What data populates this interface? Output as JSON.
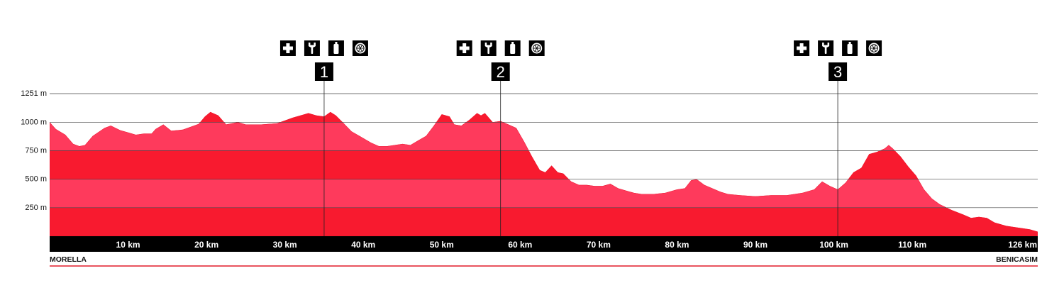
{
  "chart_data": {
    "type": "area",
    "title": "",
    "xlabel": "",
    "ylabel": "",
    "units": {
      "x": "km",
      "y": "m"
    },
    "xlim": [
      0,
      126
    ],
    "ylim": [
      0,
      1251
    ],
    "x_ticks": [
      10,
      20,
      30,
      40,
      50,
      60,
      70,
      80,
      90,
      100,
      110,
      126
    ],
    "x_tick_labels": [
      "10 km",
      "20 km",
      "30 km",
      "40 km",
      "50 km",
      "60 km",
      "70 km",
      "80 km",
      "90 km",
      "100 km",
      "110 km",
      "126 km"
    ],
    "y_ticks": [
      250,
      500,
      750,
      1000,
      1251
    ],
    "y_tick_labels": [
      "250 m",
      "500 m",
      "750 m",
      "1000 m",
      "1251 m"
    ],
    "start_label": "MORELLA",
    "end_label": "BENICASIM",
    "elevation_profile": [
      [
        0,
        1000
      ],
      [
        0.8,
        940
      ],
      [
        2,
        890
      ],
      [
        3,
        810
      ],
      [
        3.8,
        790
      ],
      [
        4.5,
        800
      ],
      [
        5.5,
        880
      ],
      [
        7,
        950
      ],
      [
        7.8,
        970
      ],
      [
        9,
        930
      ],
      [
        10,
        910
      ],
      [
        11,
        890
      ],
      [
        12,
        900
      ],
      [
        13,
        900
      ],
      [
        13.5,
        940
      ],
      [
        14.5,
        980
      ],
      [
        15.5,
        925
      ],
      [
        17,
        935
      ],
      [
        19,
        985
      ],
      [
        19.8,
        1050
      ],
      [
        20.5,
        1090
      ],
      [
        21.5,
        1060
      ],
      [
        22.5,
        980
      ],
      [
        24,
        1000
      ],
      [
        25,
        980
      ],
      [
        27,
        980
      ],
      [
        29,
        990
      ],
      [
        31,
        1040
      ],
      [
        32.5,
        1070
      ],
      [
        33,
        1080
      ],
      [
        34,
        1060
      ],
      [
        35,
        1050
      ],
      [
        35.8,
        1090
      ],
      [
        36.5,
        1060
      ],
      [
        37.5,
        990
      ],
      [
        38.5,
        920
      ],
      [
        39.5,
        880
      ],
      [
        41,
        820
      ],
      [
        42,
        790
      ],
      [
        43,
        790
      ],
      [
        44,
        800
      ],
      [
        45,
        810
      ],
      [
        46,
        800
      ],
      [
        47,
        840
      ],
      [
        48,
        880
      ],
      [
        49,
        970
      ],
      [
        50,
        1070
      ],
      [
        51,
        1050
      ],
      [
        51.6,
        980
      ],
      [
        52.5,
        970
      ],
      [
        53.5,
        1020
      ],
      [
        54.5,
        1080
      ],
      [
        55,
        1060
      ],
      [
        55.5,
        1080
      ],
      [
        56.5,
        1000
      ],
      [
        57.5,
        1010
      ],
      [
        58.5,
        980
      ],
      [
        59.5,
        950
      ],
      [
        60.5,
        830
      ],
      [
        61.5,
        700
      ],
      [
        62.5,
        580
      ],
      [
        63.2,
        560
      ],
      [
        64,
        620
      ],
      [
        64.8,
        560
      ],
      [
        65.5,
        550
      ],
      [
        66.5,
        480
      ],
      [
        67.5,
        450
      ],
      [
        68.5,
        450
      ],
      [
        69.5,
        440
      ],
      [
        70.5,
        440
      ],
      [
        71.5,
        460
      ],
      [
        72.5,
        420
      ],
      [
        73.5,
        400
      ],
      [
        74.5,
        380
      ],
      [
        75.5,
        370
      ],
      [
        77,
        370
      ],
      [
        78.5,
        380
      ],
      [
        80,
        410
      ],
      [
        81,
        420
      ],
      [
        81.8,
        490
      ],
      [
        82.5,
        500
      ],
      [
        83.5,
        450
      ],
      [
        84.5,
        420
      ],
      [
        85.5,
        390
      ],
      [
        86.5,
        370
      ],
      [
        88,
        360
      ],
      [
        90,
        350
      ],
      [
        92,
        360
      ],
      [
        94,
        360
      ],
      [
        96,
        380
      ],
      [
        97.5,
        410
      ],
      [
        98.5,
        480
      ],
      [
        99.5,
        440
      ],
      [
        100.5,
        410
      ],
      [
        101.5,
        470
      ],
      [
        102.5,
        560
      ],
      [
        103.5,
        600
      ],
      [
        104.5,
        720
      ],
      [
        105.5,
        740
      ],
      [
        106.5,
        770
      ],
      [
        107,
        800
      ],
      [
        107.5,
        770
      ],
      [
        108.5,
        700
      ],
      [
        109.5,
        610
      ],
      [
        110.5,
        530
      ],
      [
        111.5,
        410
      ],
      [
        112.5,
        330
      ],
      [
        113.5,
        280
      ],
      [
        115,
        230
      ],
      [
        116.5,
        190
      ],
      [
        117.5,
        160
      ],
      [
        118.5,
        170
      ],
      [
        119.5,
        160
      ],
      [
        120.5,
        120
      ],
      [
        122,
        90
      ],
      [
        124,
        70
      ],
      [
        125,
        60
      ],
      [
        126,
        40
      ]
    ],
    "aid_stations": [
      {
        "label": "1",
        "km": 35
      },
      {
        "label": "2",
        "km": 57.5
      },
      {
        "label": "3",
        "km": 100.5
      }
    ],
    "station_services": [
      "first-aid-cross-icon",
      "wrench-icon",
      "water-bottle-icon",
      "food-orange-icon"
    ],
    "colors": {
      "band_dark": "#f81a2f",
      "band_light": "#fe3a5c",
      "axis_bar": "#000000",
      "baseline_line": "#e21b2a",
      "gridline": "#444444"
    },
    "grid": true,
    "legend": "none"
  }
}
